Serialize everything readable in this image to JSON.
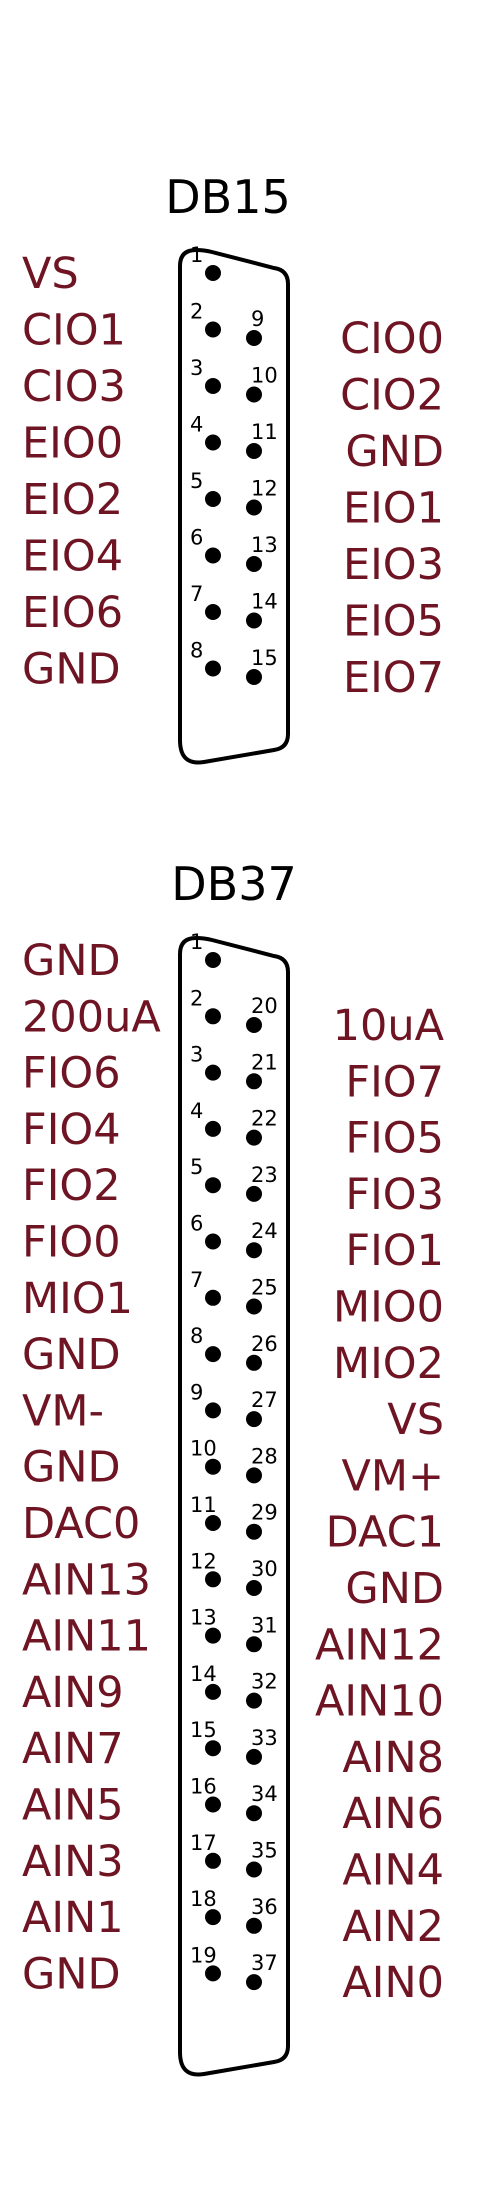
{
  "colors": {
    "signal": "#6e1423",
    "outline": "#000000",
    "pin_number": "#000000",
    "background": "#ffffff"
  },
  "connectors": [
    {
      "title": "DB15",
      "left_pins": [
        {
          "pin": "1",
          "signal": "VS"
        },
        {
          "pin": "2",
          "signal": "CIO1"
        },
        {
          "pin": "3",
          "signal": "CIO3"
        },
        {
          "pin": "4",
          "signal": "EIO0"
        },
        {
          "pin": "5",
          "signal": "EIO2"
        },
        {
          "pin": "6",
          "signal": "EIO4"
        },
        {
          "pin": "7",
          "signal": "EIO6"
        },
        {
          "pin": "8",
          "signal": "GND"
        }
      ],
      "right_pins": [
        {
          "pin": "9",
          "signal": "CIO0"
        },
        {
          "pin": "10",
          "signal": "CIO2"
        },
        {
          "pin": "11",
          "signal": "GND"
        },
        {
          "pin": "12",
          "signal": "EIO1"
        },
        {
          "pin": "13",
          "signal": "EIO3"
        },
        {
          "pin": "14",
          "signal": "EIO5"
        },
        {
          "pin": "15",
          "signal": "EIO7"
        }
      ]
    },
    {
      "title": "DB37",
      "left_pins": [
        {
          "pin": "1",
          "signal": "GND"
        },
        {
          "pin": "2",
          "signal": "200uA"
        },
        {
          "pin": "3",
          "signal": "FIO6"
        },
        {
          "pin": "4",
          "signal": "FIO4"
        },
        {
          "pin": "5",
          "signal": "FIO2"
        },
        {
          "pin": "6",
          "signal": "FIO0"
        },
        {
          "pin": "7",
          "signal": "MIO1"
        },
        {
          "pin": "8",
          "signal": "GND"
        },
        {
          "pin": "9",
          "signal": "VM-"
        },
        {
          "pin": "10",
          "signal": "GND"
        },
        {
          "pin": "11",
          "signal": "DAC0"
        },
        {
          "pin": "12",
          "signal": "AIN13"
        },
        {
          "pin": "13",
          "signal": "AIN11"
        },
        {
          "pin": "14",
          "signal": "AIN9"
        },
        {
          "pin": "15",
          "signal": "AIN7"
        },
        {
          "pin": "16",
          "signal": "AIN5"
        },
        {
          "pin": "17",
          "signal": "AIN3"
        },
        {
          "pin": "18",
          "signal": "AIN1"
        },
        {
          "pin": "19",
          "signal": "GND"
        }
      ],
      "right_pins": [
        {
          "pin": "20",
          "signal": "10uA"
        },
        {
          "pin": "21",
          "signal": "FIO7"
        },
        {
          "pin": "22",
          "signal": "FIO5"
        },
        {
          "pin": "23",
          "signal": "FIO3"
        },
        {
          "pin": "24",
          "signal": "FIO1"
        },
        {
          "pin": "25",
          "signal": "MIO0"
        },
        {
          "pin": "26",
          "signal": "MIO2"
        },
        {
          "pin": "27",
          "signal": "VS"
        },
        {
          "pin": "28",
          "signal": "VM+"
        },
        {
          "pin": "29",
          "signal": "DAC1"
        },
        {
          "pin": "30",
          "signal": "GND"
        },
        {
          "pin": "31",
          "signal": "AIN12"
        },
        {
          "pin": "32",
          "signal": "AIN10"
        },
        {
          "pin": "33",
          "signal": "AIN8"
        },
        {
          "pin": "34",
          "signal": "AIN6"
        },
        {
          "pin": "35",
          "signal": "AIN4"
        },
        {
          "pin": "36",
          "signal": "AIN2"
        },
        {
          "pin": "37",
          "signal": "AIN0"
        }
      ]
    }
  ]
}
